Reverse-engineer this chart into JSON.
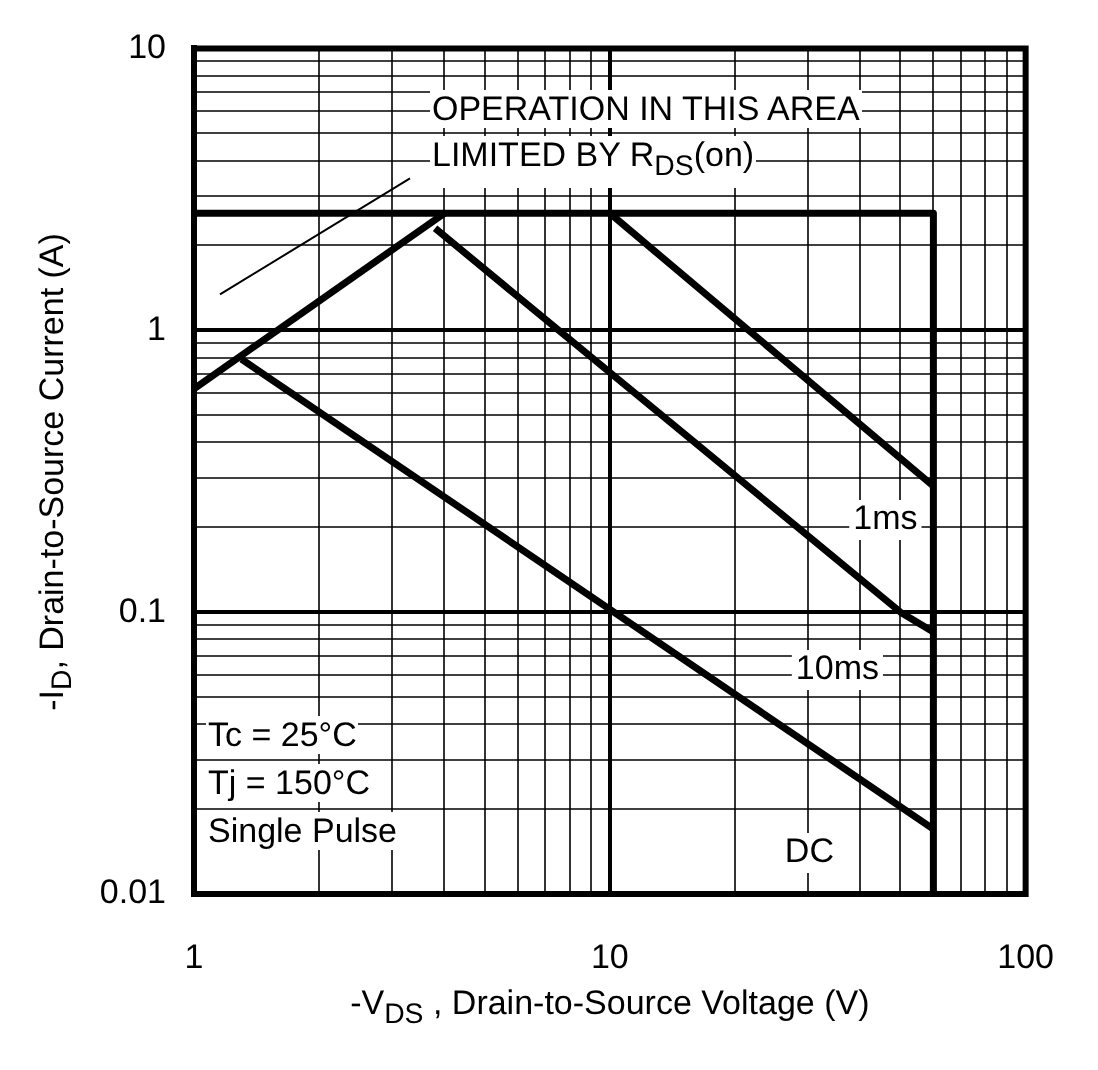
{
  "chart_data": {
    "type": "line",
    "xlabel": "-V$_{DS}$  , Drain-to-Source Voltage (V)",
    "ylabel": "-I$_{D}$,  Drain-to-Source Current (A)",
    "annotations": [
      "OPERATION IN THIS AREA",
      "LIMITED BY R$_{DS}$(on)",
      "Tc = 25°C",
      "Tj = 150°C",
      "Single Pulse"
    ],
    "series": [
      {
        "color": "#000000",
        "x": [
          1,
          4
        ],
        "values": [
          0.62,
          2.6
        ]
      },
      {
        "color": "#000000",
        "x": [
          1,
          60,
          60
        ],
        "values": [
          2.6,
          2.6,
          0.01
        ]
      },
      {
        "name": "1ms",
        "color": "#000000",
        "x": [
          10,
          60
        ],
        "values": [
          2.6,
          0.28
        ]
      },
      {
        "name": "10ms",
        "color": "#000000",
        "x": [
          3.8,
          50,
          60
        ],
        "values": [
          2.3,
          0.1,
          0.085
        ]
      },
      {
        "name": "DC",
        "color": "#000000",
        "x": [
          1.3,
          60
        ],
        "values": [
          0.79,
          0.017
        ]
      }
    ],
    "log": "xy",
    "xlim": [
      1,
      100
    ],
    "ylim": [
      0.01,
      10
    ],
    "xticks": [
      1,
      {
        "value": 2,
        "label": null
      },
      {
        "value": 3,
        "label": null
      },
      {
        "value": 4,
        "label": null
      },
      {
        "value": 5,
        "label": null
      },
      {
        "value": 6,
        "label": null
      },
      {
        "value": 7,
        "label": null
      },
      {
        "value": 8,
        "label": null
      },
      {
        "value": 9,
        "label": null
      },
      10,
      {
        "value": 20,
        "label": null
      },
      {
        "value": 30,
        "label": null
      },
      {
        "value": 40,
        "label": null
      },
      {
        "value": 50,
        "label": null
      },
      {
        "value": 60,
        "label": null
      },
      {
        "value": 70,
        "label": null
      },
      {
        "value": 80,
        "label": null
      },
      {
        "value": 90,
        "label": null
      },
      100
    ],
    "yticks": [
      0.01,
      {
        "value": 0.02,
        "label": null
      },
      {
        "value": 0.03,
        "label": null
      },
      {
        "value": 0.04,
        "label": null
      },
      {
        "value": 0.05,
        "label": null
      },
      {
        "value": 0.06,
        "label": null
      },
      {
        "value": 0.07,
        "label": null
      },
      {
        "value": 0.08,
        "label": null
      },
      {
        "value": 0.09,
        "label": null
      },
      0.1,
      {
        "value": 0.2,
        "label": null
      },
      {
        "value": 0.3,
        "label": null
      },
      {
        "value": 0.4,
        "label": null
      },
      {
        "value": 0.5,
        "label": null
      },
      {
        "value": 0.6,
        "label": null
      },
      {
        "value": 0.7,
        "label": null
      },
      {
        "value": 0.8,
        "label": null
      },
      {
        "value": 0.9,
        "label": null
      },
      1,
      {
        "value": 2,
        "label": null
      },
      {
        "value": 3,
        "label": null
      },
      {
        "value": 4,
        "label": null
      },
      {
        "value": 5,
        "label": null
      },
      {
        "value": 6,
        "label": null
      },
      {
        "value": 7,
        "label": null
      },
      {
        "value": 8,
        "label": null
      },
      {
        "value": 9,
        "label": null
      },
      10
    ],
    "grid": true,
    "legend": false,
    "marker": "none",
    "line_style": "solid"
  }
}
